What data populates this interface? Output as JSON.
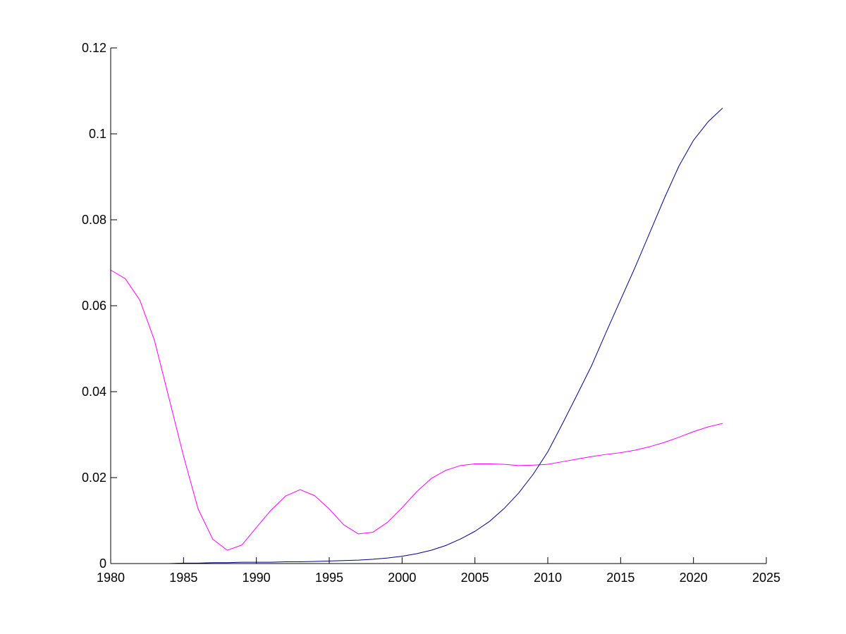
{
  "chart_data": {
    "type": "line",
    "title": "",
    "xlabel": "",
    "ylabel": "",
    "xlim": [
      1980,
      2025
    ],
    "ylim": [
      0,
      0.12
    ],
    "xticks": [
      {
        "value": 1980,
        "label": "1980"
      },
      {
        "value": 1985,
        "label": "1985"
      },
      {
        "value": 1990,
        "label": "1990"
      },
      {
        "value": 1995,
        "label": "1995"
      },
      {
        "value": 2000,
        "label": "2000"
      },
      {
        "value": 2005,
        "label": "2005"
      },
      {
        "value": 2010,
        "label": "2010"
      },
      {
        "value": 2015,
        "label": "2015"
      },
      {
        "value": 2020,
        "label": "2020"
      },
      {
        "value": 2025,
        "label": "2025"
      }
    ],
    "yticks": [
      {
        "value": 0,
        "label": "0"
      },
      {
        "value": 0.02,
        "label": "0.02"
      },
      {
        "value": 0.04,
        "label": "0.04"
      },
      {
        "value": 0.06,
        "label": "0.06"
      },
      {
        "value": 0.08,
        "label": "0.08"
      },
      {
        "value": 0.1,
        "label": "0.1"
      },
      {
        "value": 0.12,
        "label": "0.12"
      }
    ],
    "grid": false,
    "legend": "none",
    "x": [
      1980,
      1981,
      1982,
      1983,
      1984,
      1985,
      1986,
      1987,
      1988,
      1989,
      1990,
      1991,
      1992,
      1993,
      1994,
      1995,
      1996,
      1997,
      1998,
      1999,
      2000,
      2001,
      2002,
      2003,
      2004,
      2005,
      2006,
      2007,
      2008,
      2009,
      2010,
      2011,
      2012,
      2013,
      2014,
      2015,
      2016,
      2017,
      2018,
      2019,
      2020,
      2021,
      2022
    ],
    "series": [
      {
        "color": "#ff00ff",
        "values": [
          0.0683,
          0.0663,
          0.0613,
          0.052,
          0.0385,
          0.025,
          0.0127,
          0.0057,
          0.0031,
          0.0043,
          0.0084,
          0.0124,
          0.0157,
          0.0172,
          0.0158,
          0.0127,
          0.009,
          0.0069,
          0.0073,
          0.0096,
          0.013,
          0.0167,
          0.0198,
          0.0217,
          0.0228,
          0.0232,
          0.0232,
          0.0231,
          0.0228,
          0.0229,
          0.0231,
          0.0237,
          0.0243,
          0.0249,
          0.0254,
          0.0258,
          0.0264,
          0.0272,
          0.0282,
          0.0294,
          0.0307,
          0.0318,
          0.0326
        ]
      },
      {
        "color": "#00008b",
        "values": [
          0,
          0,
          0,
          0,
          0,
          0.0001,
          0.0001,
          0.0002,
          0.0002,
          0.0003,
          0.0003,
          0.0003,
          0.0004,
          0.0004,
          0.0005,
          0.0006,
          0.0007,
          0.0008,
          0.001,
          0.0013,
          0.0017,
          0.0023,
          0.0031,
          0.0042,
          0.0057,
          0.0075,
          0.0098,
          0.0128,
          0.0164,
          0.0208,
          0.026,
          0.0325,
          0.0392,
          0.046,
          0.0538,
          0.0614,
          0.069,
          0.077,
          0.085,
          0.0925,
          0.0985,
          0.1028,
          0.106
        ]
      }
    ]
  }
}
